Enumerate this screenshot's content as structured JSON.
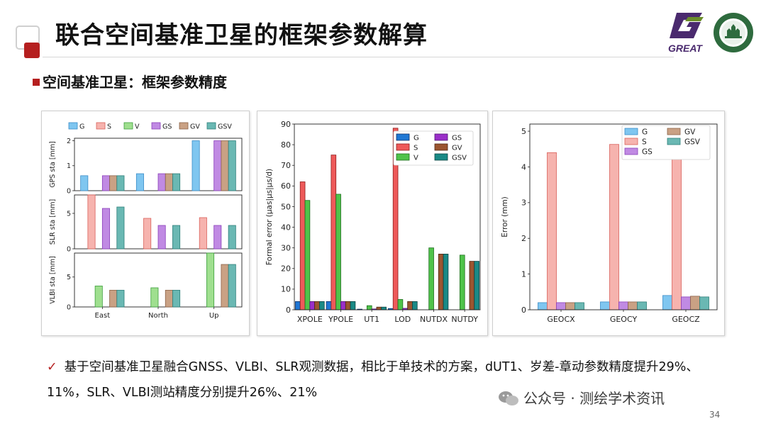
{
  "slide": {
    "title": "联合空间基准卫星的框架参数解算",
    "subtitle": "空间基准卫星：框架参数精度",
    "logo_text": "GREAT",
    "note_mark": "✓",
    "note_text": "基于空间基准卫星融合GNSS、VLBI、SLR观测数据，相比于单技术的方案，dUT1、岁差-章动参数精度提升29%、11%，SLR、VLBI测站精度分别提升26%、21%",
    "watermark": "公众号 · 测绘学术资讯",
    "page_number": "34",
    "accent_color": "#b51f1f"
  },
  "series_colors": {
    "G": {
      "fill": "#7fc6f0",
      "edge": "#3a8cc7"
    },
    "S": {
      "fill": "#f6b3ae",
      "edge": "#d9605a"
    },
    "V": {
      "fill": "#9fdf8f",
      "edge": "#3c9e3c"
    },
    "GS": {
      "fill": "#c08ae3",
      "edge": "#8a3fba"
    },
    "GV": {
      "fill": "#c9a184",
      "edge": "#8c6248"
    },
    "GSV": {
      "fill": "#6ab8b3",
      "edge": "#2e7f7a"
    }
  },
  "series_colors_mid": {
    "G": {
      "fill": "#1f77d4",
      "edge": "#0d2f66"
    },
    "S": {
      "fill": "#ee5a5a",
      "edge": "#8e1b1b"
    },
    "V": {
      "fill": "#4fc34a",
      "edge": "#1f6e1f"
    },
    "GS": {
      "fill": "#9a2fc9",
      "edge": "#4e1470"
    },
    "GV": {
      "fill": "#9b5530",
      "edge": "#4d2812"
    },
    "GSV": {
      "fill": "#1a8a86",
      "edge": "#0c4442"
    }
  },
  "chart_data": [
    {
      "type": "bar",
      "categories": [
        "East",
        "North",
        "Up"
      ],
      "legend": [
        "G",
        "S",
        "V",
        "GS",
        "GV",
        "GSV"
      ],
      "legend_position": "top",
      "subplots": [
        {
          "ylabel": "GPS sta [mm]",
          "ylim": [
            0,
            2.1
          ],
          "yticks": [
            0,
            1,
            2
          ],
          "series": [
            {
              "name": "G",
              "values": [
                0.6,
                0.68,
                2.0
              ]
            },
            {
              "name": "S",
              "values": [
                null,
                null,
                null
              ]
            },
            {
              "name": "V",
              "values": [
                null,
                null,
                null
              ]
            },
            {
              "name": "GS",
              "values": [
                0.6,
                0.68,
                2.0
              ]
            },
            {
              "name": "GV",
              "values": [
                0.6,
                0.68,
                2.0
              ]
            },
            {
              "name": "GSV",
              "values": [
                0.6,
                0.68,
                2.0
              ]
            }
          ]
        },
        {
          "ylabel": "SLR sta [mm]",
          "ylim": [
            0,
            7.6
          ],
          "yticks": [
            0,
            5
          ],
          "series": [
            {
              "name": "G",
              "values": [
                null,
                null,
                null
              ]
            },
            {
              "name": "S",
              "values": [
                7.6,
                4.3,
                4.4
              ]
            },
            {
              "name": "V",
              "values": [
                null,
                null,
                null
              ]
            },
            {
              "name": "GS",
              "values": [
                5.7,
                3.3,
                3.3
              ]
            },
            {
              "name": "GV",
              "values": [
                null,
                null,
                null
              ]
            },
            {
              "name": "GSV",
              "values": [
                5.9,
                3.3,
                3.3
              ]
            }
          ]
        },
        {
          "ylabel": "VLBI sta [mm]",
          "ylim": [
            0,
            9
          ],
          "yticks": [
            0,
            5
          ],
          "series": [
            {
              "name": "G",
              "values": [
                null,
                null,
                null
              ]
            },
            {
              "name": "S",
              "values": [
                null,
                null,
                null
              ]
            },
            {
              "name": "V",
              "values": [
                3.5,
                3.2,
                9.0
              ]
            },
            {
              "name": "GS",
              "values": [
                null,
                null,
                null
              ]
            },
            {
              "name": "GV",
              "values": [
                2.8,
                2.8,
                7.1
              ]
            },
            {
              "name": "GSV",
              "values": [
                2.8,
                2.8,
                7.1
              ]
            }
          ]
        }
      ]
    },
    {
      "type": "bar",
      "categories": [
        "XPOLE",
        "YPOLE",
        "UT1",
        "LOD",
        "NUTDX",
        "NUTDY"
      ],
      "ylabel": "Formal error (μas|μs|μs/d)",
      "ylim": [
        0,
        90
      ],
      "yticks": [
        0,
        10,
        20,
        30,
        40,
        50,
        60,
        70,
        80,
        90
      ],
      "legend": [
        "G",
        "S",
        "V",
        "GS",
        "GV",
        "GSV"
      ],
      "legend_position": "top-right",
      "series": [
        {
          "name": "G",
          "values": [
            4,
            4,
            0.3,
            0.6,
            null,
            null
          ]
        },
        {
          "name": "S",
          "values": [
            62,
            75,
            null,
            88,
            null,
            null
          ]
        },
        {
          "name": "V",
          "values": [
            53,
            56,
            2,
            5,
            30,
            26.5
          ]
        },
        {
          "name": "GS",
          "values": [
            4,
            4,
            0.4,
            0.7,
            null,
            null
          ]
        },
        {
          "name": "GV",
          "values": [
            4,
            4,
            1.3,
            4,
            27,
            23.5
          ]
        },
        {
          "name": "GSV",
          "values": [
            4,
            4,
            1.3,
            4,
            27,
            23.5
          ]
        }
      ]
    },
    {
      "type": "bar",
      "categories": [
        "GEOCX",
        "GEOCY",
        "GEOCZ"
      ],
      "ylabel": "Error (mm)",
      "ylim": [
        0,
        5.2
      ],
      "yticks": [
        0,
        1,
        2,
        3,
        4,
        5
      ],
      "legend": [
        "G",
        "S",
        "GS",
        "GV",
        "GSV"
      ],
      "legend_position": "top-right",
      "series": [
        {
          "name": "G",
          "values": [
            0.2,
            0.22,
            0.4
          ]
        },
        {
          "name": "S",
          "values": [
            4.4,
            4.63,
            4.62
          ]
        },
        {
          "name": "GS",
          "values": [
            0.2,
            0.22,
            0.36
          ]
        },
        {
          "name": "GV",
          "values": [
            0.2,
            0.22,
            0.38
          ]
        },
        {
          "name": "GSV",
          "values": [
            0.2,
            0.22,
            0.36
          ]
        }
      ]
    }
  ]
}
